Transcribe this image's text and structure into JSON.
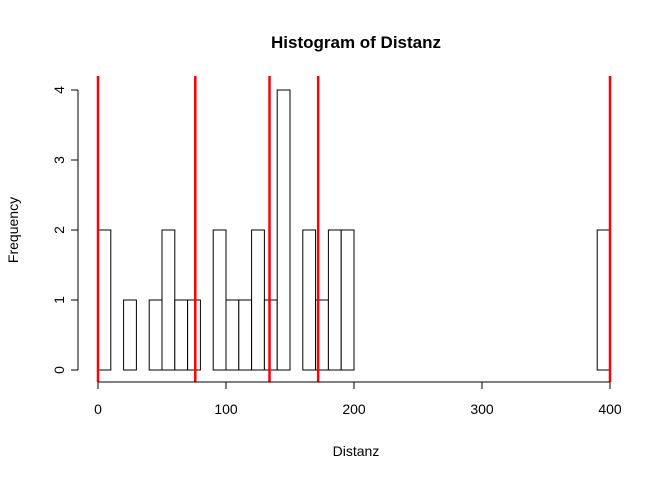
{
  "chart_data": {
    "type": "bar",
    "title": "Histogram of Distanz",
    "xlabel": "Distanz",
    "ylabel": "Frequency",
    "xlim": [
      0,
      400
    ],
    "ylim": [
      0,
      4
    ],
    "x_ticks": [
      0,
      100,
      200,
      300,
      400
    ],
    "y_ticks": [
      0,
      1,
      2,
      3,
      4
    ],
    "bin_width": 10,
    "bins": [
      {
        "start": 0,
        "end": 10,
        "count": 2
      },
      {
        "start": 10,
        "end": 20,
        "count": 0
      },
      {
        "start": 20,
        "end": 30,
        "count": 1
      },
      {
        "start": 30,
        "end": 40,
        "count": 0
      },
      {
        "start": 40,
        "end": 50,
        "count": 1
      },
      {
        "start": 50,
        "end": 60,
        "count": 2
      },
      {
        "start": 60,
        "end": 70,
        "count": 1
      },
      {
        "start": 70,
        "end": 80,
        "count": 1
      },
      {
        "start": 80,
        "end": 90,
        "count": 0
      },
      {
        "start": 90,
        "end": 100,
        "count": 2
      },
      {
        "start": 100,
        "end": 110,
        "count": 1
      },
      {
        "start": 110,
        "end": 120,
        "count": 1
      },
      {
        "start": 120,
        "end": 130,
        "count": 2
      },
      {
        "start": 130,
        "end": 140,
        "count": 1
      },
      {
        "start": 140,
        "end": 150,
        "count": 4
      },
      {
        "start": 150,
        "end": 160,
        "count": 0
      },
      {
        "start": 160,
        "end": 170,
        "count": 2
      },
      {
        "start": 170,
        "end": 180,
        "count": 1
      },
      {
        "start": 180,
        "end": 190,
        "count": 2
      },
      {
        "start": 190,
        "end": 200,
        "count": 2
      },
      {
        "start": 200,
        "end": 210,
        "count": 0
      },
      {
        "start": 210,
        "end": 220,
        "count": 0
      },
      {
        "start": 220,
        "end": 230,
        "count": 0
      },
      {
        "start": 230,
        "end": 240,
        "count": 0
      },
      {
        "start": 240,
        "end": 250,
        "count": 0
      },
      {
        "start": 250,
        "end": 260,
        "count": 0
      },
      {
        "start": 260,
        "end": 270,
        "count": 0
      },
      {
        "start": 270,
        "end": 280,
        "count": 0
      },
      {
        "start": 280,
        "end": 290,
        "count": 0
      },
      {
        "start": 290,
        "end": 300,
        "count": 0
      },
      {
        "start": 300,
        "end": 310,
        "count": 0
      },
      {
        "start": 310,
        "end": 320,
        "count": 0
      },
      {
        "start": 320,
        "end": 330,
        "count": 0
      },
      {
        "start": 330,
        "end": 340,
        "count": 0
      },
      {
        "start": 340,
        "end": 350,
        "count": 0
      },
      {
        "start": 350,
        "end": 360,
        "count": 0
      },
      {
        "start": 360,
        "end": 370,
        "count": 0
      },
      {
        "start": 370,
        "end": 380,
        "count": 0
      },
      {
        "start": 380,
        "end": 390,
        "count": 0
      },
      {
        "start": 390,
        "end": 400,
        "count": 2
      }
    ],
    "vertical_lines": [
      0,
      76,
      134,
      172,
      400
    ],
    "colors": {
      "bar_fill": "#ffffff",
      "bar_stroke": "#000000",
      "vline": "#ff0000",
      "axis": "#000000"
    },
    "grid": false,
    "legend": "none"
  }
}
